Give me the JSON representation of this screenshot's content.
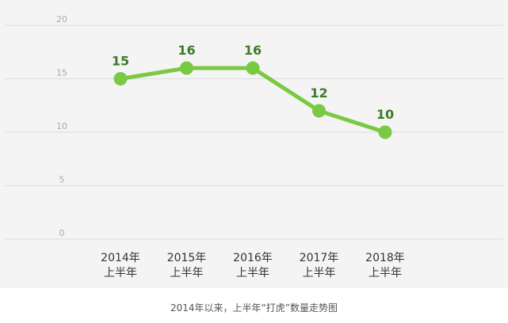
{
  "caption": "2014年以来，上半年“打虎”数量走势图",
  "colors": {
    "line": "#7ac943",
    "point": "#7ac943",
    "data_label": "#3d7a2a",
    "grid": "#dcdcdc",
    "tick_label": "#aaaaaa",
    "x_label": "#333333",
    "background": "#f4f4f4"
  },
  "chart_data": {
    "type": "line",
    "categories": [
      [
        "2014年",
        "上半年"
      ],
      [
        "2015年",
        "上半年"
      ],
      [
        "2016年",
        "上半年"
      ],
      [
        "2017年",
        "上半年"
      ],
      [
        "2018年",
        "上半年"
      ]
    ],
    "series": [
      {
        "values": [
          15,
          16,
          16,
          12,
          10
        ]
      }
    ],
    "data_labels": [
      "15",
      "16",
      "16",
      "12",
      "10"
    ],
    "ylim": [
      0,
      20
    ],
    "yticks": [
      "0",
      "5",
      "10",
      "15",
      "20"
    ],
    "grid": true,
    "legend": "none",
    "xlabel": "",
    "ylabel": "",
    "title": ""
  }
}
